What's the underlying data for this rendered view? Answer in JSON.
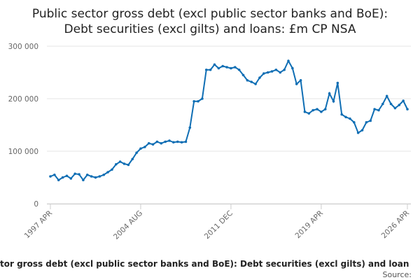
{
  "chart_data": {
    "type": "line",
    "title": [
      "Public sector gross debt (excl public sector banks and BoE):",
      "Debt securities (excl gilts) and loans: £m CP NSA"
    ],
    "footer": "tor gross debt (excl public sector banks and BoE): Debt securities (excl gilts) and loan",
    "source": "Source:",
    "categories": [
      "1997 APR",
      null,
      null,
      null,
      null,
      null,
      null,
      null,
      null,
      null,
      null,
      null,
      null,
      null,
      null,
      null,
      null,
      null,
      null,
      null,
      null,
      null,
      "2004 AUG",
      null,
      null,
      null,
      null,
      null,
      null,
      null,
      null,
      null,
      null,
      null,
      null,
      null,
      null,
      null,
      null,
      null,
      null,
      null,
      null,
      null,
      "2011 DEC",
      null,
      null,
      null,
      null,
      null,
      null,
      null,
      null,
      null,
      null,
      null,
      null,
      null,
      null,
      null,
      null,
      null,
      null,
      null,
      null,
      null,
      "2019 APR",
      null,
      null,
      null,
      null,
      null,
      null,
      null,
      null,
      null,
      null,
      null,
      null,
      null,
      null,
      null,
      null,
      null,
      null,
      null,
      null,
      "2026 APR"
    ],
    "series": [
      {
        "name": "Debt securities (excl gilts) and loans",
        "color": "#0f6eb4",
        "values": [
          52000,
          55000,
          45000,
          50000,
          53000,
          48000,
          57000,
          56000,
          45000,
          55000,
          52000,
          50000,
          52000,
          55000,
          60000,
          65000,
          75000,
          80000,
          76000,
          74000,
          85000,
          97000,
          105000,
          108000,
          115000,
          113000,
          118000,
          115000,
          118000,
          120000,
          117000,
          118000,
          117000,
          118000,
          145000,
          195000,
          195000,
          200000,
          255000,
          255000,
          265000,
          258000,
          262000,
          260000,
          258000,
          260000,
          255000,
          245000,
          235000,
          232000,
          228000,
          240000,
          248000,
          250000,
          252000,
          255000,
          250000,
          255000,
          272000,
          258000,
          228000,
          235000,
          175000,
          172000,
          178000,
          180000,
          175000,
          180000,
          210000,
          195000,
          230000,
          170000,
          165000,
          162000,
          155000,
          135000,
          140000,
          155000,
          158000,
          180000,
          178000,
          190000,
          205000,
          190000,
          182000,
          188000,
          196000,
          180000
        ]
      }
    ],
    "ylim": [
      0,
      300000
    ],
    "yticks": [
      0,
      {
        "value": 100000,
        "label": "100 000"
      },
      {
        "value": 200000,
        "label": "200 000"
      },
      {
        "value": 300000,
        "label": "300 000"
      }
    ],
    "grid": true
  }
}
